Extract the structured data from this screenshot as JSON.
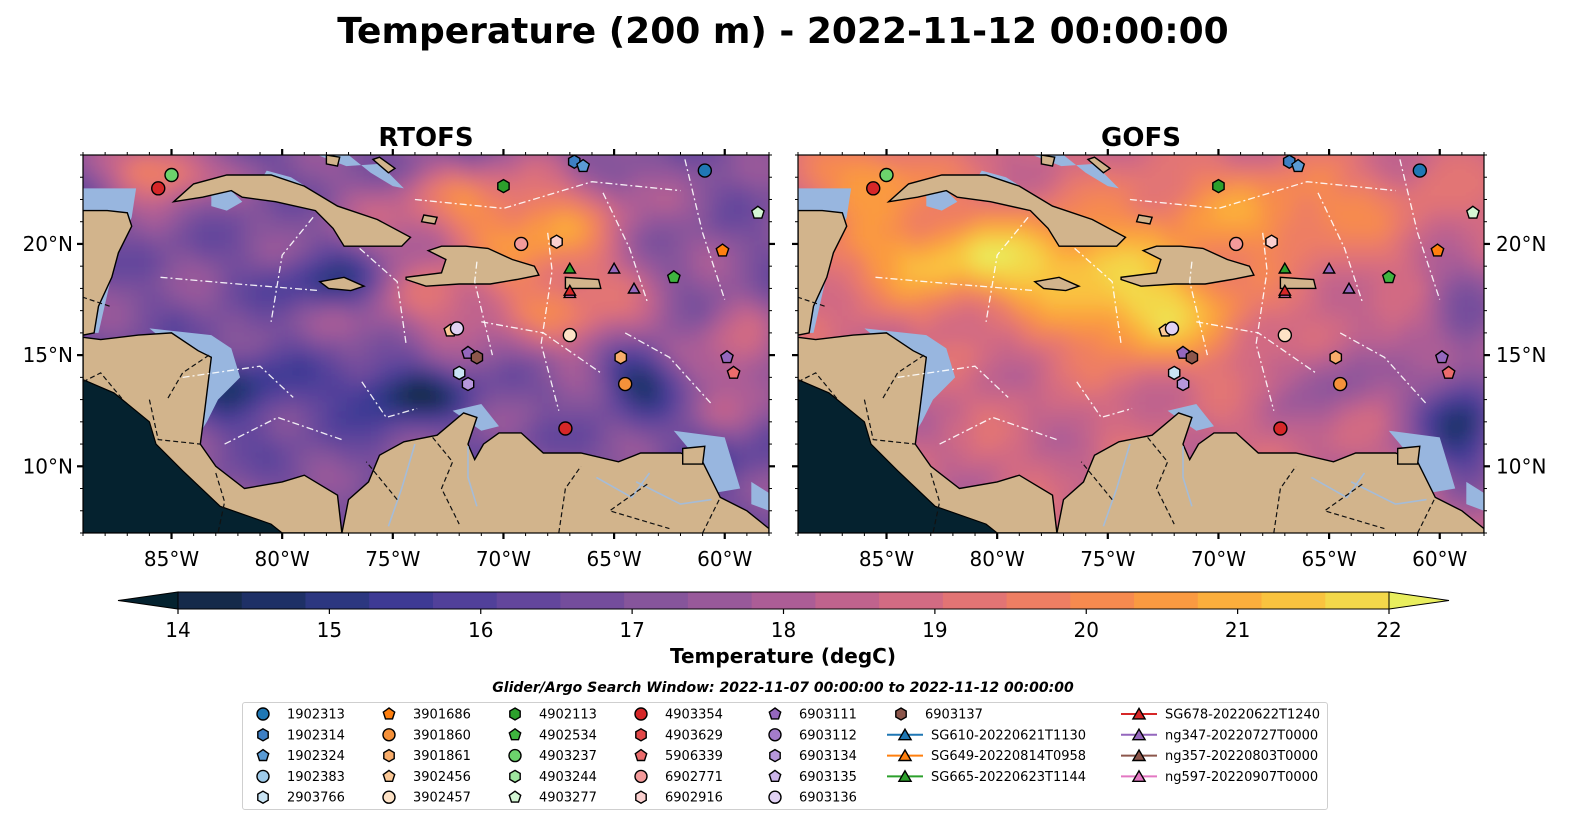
{
  "title": "Temperature (200 m) - 2022-11-12 00:00:00",
  "chart_data": [
    {
      "type": "heatmap",
      "title": "RTOFS",
      "xlim": [
        -89,
        -58
      ],
      "ylim": [
        7,
        24
      ],
      "xticks": [
        "85°W",
        "80°W",
        "75°W",
        "70°W",
        "65°W",
        "60°W"
      ],
      "yticks": [
        "10°N",
        "15°N",
        "20°N"
      ],
      "field": "temperature at 200 m, mostly 16–21 degC; cool cores (14–15 degC) near 77°W 18°N, 74°W 13°N, 64°W 14°N; warm (21–22 degC) north of Puerto Rico and near 85°W 23°N"
    },
    {
      "type": "heatmap",
      "title": "GOFS",
      "xlim": [
        -89,
        -58
      ],
      "ylim": [
        7,
        24
      ],
      "xticks": [
        "85°W",
        "80°W",
        "75°W",
        "70°W",
        "65°W",
        "60°W"
      ],
      "yticks": [
        "10°N",
        "15°N",
        "20°N"
      ],
      "field": "temperature at 200 m, mostly 18–21 degC; warm (21–22 degC) band 18–20°N from 85°W to 65°W; cool (14–16 degC) east of 60°W near 12°N"
    }
  ],
  "colorbar": {
    "label": "Temperature (degC)",
    "min": 14,
    "max": 22,
    "ticks": [
      14,
      15,
      16,
      17,
      18,
      19,
      20,
      21,
      22
    ],
    "extend": "both",
    "colors": [
      "#04222f",
      "#152a4a",
      "#1e3066",
      "#2c3780",
      "#3e3a94",
      "#51409a",
      "#63469c",
      "#744d9c",
      "#86559b",
      "#98599a",
      "#ac5d96",
      "#c0638d",
      "#d26b83",
      "#e27474",
      "#ee7e63",
      "#f68a4f",
      "#fa9a41",
      "#fbae3c",
      "#f9c33f",
      "#f3d84a",
      "#e9ee5e"
    ]
  },
  "search_window": "Glider/Argo Search Window: 2022-11-07 00:00:00 to 2022-11-12 00:00:00",
  "legend": [
    {
      "label": "1902313",
      "marker": "circle",
      "color": "#1f77b4"
    },
    {
      "label": "1902314",
      "marker": "hexagon",
      "color": "#3d7fc4"
    },
    {
      "label": "1902324",
      "marker": "pentagon",
      "color": "#5a9bd5"
    },
    {
      "label": "1902383",
      "marker": "circle",
      "color": "#9ecae9"
    },
    {
      "label": "2903766",
      "marker": "hexagon",
      "color": "#c9e4f4"
    },
    {
      "label": "3901686",
      "marker": "pentagon",
      "color": "#ff7f0e"
    },
    {
      "label": "3901860",
      "marker": "circle",
      "color": "#f5913a"
    },
    {
      "label": "3901861",
      "marker": "hexagon",
      "color": "#f8ad6b"
    },
    {
      "label": "3902456",
      "marker": "pentagon",
      "color": "#fbc896"
    },
    {
      "label": "3902457",
      "marker": "circle",
      "color": "#fde2c6"
    },
    {
      "label": "4902113",
      "marker": "hexagon",
      "color": "#2ca02c"
    },
    {
      "label": "4902534",
      "marker": "pentagon",
      "color": "#3fb43f"
    },
    {
      "label": "4903237",
      "marker": "circle",
      "color": "#6cd36c"
    },
    {
      "label": "4903244",
      "marker": "hexagon",
      "color": "#9fe59f"
    },
    {
      "label": "4903277",
      "marker": "pentagon",
      "color": "#d4f6d4"
    },
    {
      "label": "4903354",
      "marker": "circle",
      "color": "#d62728"
    },
    {
      "label": "4903629",
      "marker": "hexagon",
      "color": "#e24848"
    },
    {
      "label": "5906339",
      "marker": "pentagon",
      "color": "#eb6c6c"
    },
    {
      "label": "6902771",
      "marker": "circle",
      "color": "#f39a9a"
    },
    {
      "label": "6902916",
      "marker": "hexagon",
      "color": "#fad0cf"
    },
    {
      "label": "6903111",
      "marker": "pentagon",
      "color": "#9467bd"
    },
    {
      "label": "6903112",
      "marker": "circle",
      "color": "#a47ccb"
    },
    {
      "label": "6903134",
      "marker": "hexagon",
      "color": "#b797dc"
    },
    {
      "label": "6903135",
      "marker": "pentagon",
      "color": "#ccb5e9"
    },
    {
      "label": "6903136",
      "marker": "circle",
      "color": "#e1d2f4"
    },
    {
      "label": "6903137",
      "marker": "hexagon",
      "color": "#8c564b"
    },
    {
      "label": "SG610-20220621T1130",
      "marker": "triangle-line",
      "color": "#1f77b4"
    },
    {
      "label": "SG649-20220814T0958",
      "marker": "triangle-line",
      "color": "#ff7f0e"
    },
    {
      "label": "SG665-20220623T1144",
      "marker": "triangle-line",
      "color": "#2ca02c"
    },
    {
      "label": "SG678-20220622T1240",
      "marker": "triangle-line",
      "color": "#d62728"
    },
    {
      "label": "ng347-20220727T0000",
      "marker": "triangle-line",
      "color": "#9467bd"
    },
    {
      "label": "ng357-20220803T0000",
      "marker": "triangle-line",
      "color": "#8c564b"
    },
    {
      "label": "ng597-20220907T0000",
      "marker": "triangle-line",
      "color": "#e377c2"
    }
  ],
  "points": [
    {
      "id": "1902313",
      "lon": -60.9,
      "lat": 23.3
    },
    {
      "id": "1902314",
      "lon": -66.8,
      "lat": 23.7
    },
    {
      "id": "1902324",
      "lon": -66.4,
      "lat": 23.5
    },
    {
      "id": "4903237",
      "lon": -85.0,
      "lat": 23.1
    },
    {
      "id": "4903354",
      "lon": -85.6,
      "lat": 22.5
    },
    {
      "id": "4902113",
      "lon": -70.0,
      "lat": 22.6
    },
    {
      "id": "4903277",
      "lon": -58.5,
      "lat": 21.4
    },
    {
      "id": "6902771",
      "lon": -69.2,
      "lat": 20.0
    },
    {
      "id": "6902916",
      "lon": -67.6,
      "lat": 20.1
    },
    {
      "id": "3901686",
      "lon": -60.1,
      "lat": 19.7
    },
    {
      "id": "SG665-20220623T1144",
      "lon": -67.0,
      "lat": 18.9
    },
    {
      "id": "ng597-20220907T0000",
      "lon": -67.0,
      "lat": 17.8
    },
    {
      "id": "SG678-20220622T1240",
      "lon": -67.0,
      "lat": 17.9
    },
    {
      "id": "ng347-20220727T0000",
      "lon": -65.0,
      "lat": 18.9
    },
    {
      "id": "ng347-20220727T0000",
      "lon": -64.1,
      "lat": 18.0
    },
    {
      "id": "4902534",
      "lon": -62.3,
      "lat": 18.5
    },
    {
      "id": "3902456",
      "lon": -72.4,
      "lat": 16.1
    },
    {
      "id": "6903136",
      "lon": -72.1,
      "lat": 16.2
    },
    {
      "id": "3902457",
      "lon": -67.0,
      "lat": 15.9
    },
    {
      "id": "6903111",
      "lon": -71.6,
      "lat": 15.1
    },
    {
      "id": "6903137",
      "lon": -71.2,
      "lat": 14.9
    },
    {
      "id": "2903766",
      "lon": -72.0,
      "lat": 14.2
    },
    {
      "id": "6903134",
      "lon": -71.6,
      "lat": 13.7
    },
    {
      "id": "3901861",
      "lon": -64.7,
      "lat": 14.9
    },
    {
      "id": "3901860",
      "lon": -64.5,
      "lat": 13.7
    },
    {
      "id": "6903111",
      "lon": -59.9,
      "lat": 14.9
    },
    {
      "id": "5906339",
      "lon": -59.6,
      "lat": 14.2
    },
    {
      "id": "4903354",
      "lon": -67.2,
      "lat": 11.7
    }
  ]
}
